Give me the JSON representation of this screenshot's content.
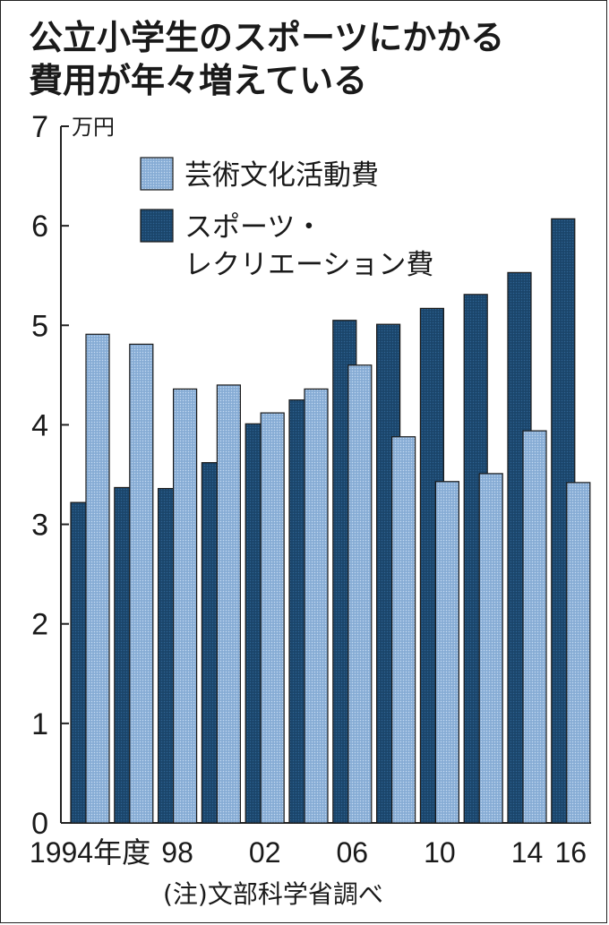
{
  "title_lines": [
    "公立小学生のスポーツにかかる",
    "費用が年々増えている"
  ],
  "note": "(注)文部科学省調べ",
  "colors": {
    "light_series": "#8fb3da",
    "dark_series": "#1d4a72",
    "axis": "#222222"
  },
  "chart_data": {
    "type": "bar",
    "title": "公立小学生のスポーツにかかる費用が年々増えている",
    "ylabel": "万円",
    "ylim": [
      0,
      7
    ],
    "yticks": [
      "0",
      "1",
      "2",
      "3",
      "4",
      "5",
      "6",
      "7"
    ],
    "grid": false,
    "legend_placement": "top-center",
    "categories": [
      "1994",
      "1996",
      "1998",
      "2000",
      "2002",
      "2004",
      "2006",
      "2008",
      "2010",
      "2012",
      "2014",
      "2016"
    ],
    "x_tick_labels": [
      {
        "category_index": 0,
        "text": "1994年度"
      },
      {
        "category_index": 2,
        "text": "98"
      },
      {
        "category_index": 4,
        "text": "02"
      },
      {
        "category_index": 6,
        "text": "06"
      },
      {
        "category_index": 8,
        "text": "10"
      },
      {
        "category_index": 10,
        "text": "14"
      },
      {
        "category_index": 11,
        "text": "16"
      }
    ],
    "series": [
      {
        "name": "スポーツ・レクリエーション費",
        "legend_lines": [
          "スポーツ・",
          "レクリエーション費"
        ],
        "color": "#1d4a72",
        "values": [
          3.22,
          3.37,
          3.36,
          3.62,
          4.01,
          4.25,
          5.05,
          5.01,
          5.17,
          5.31,
          5.53,
          6.07
        ]
      },
      {
        "name": "芸術文化活動費",
        "legend_lines": [
          "芸術文化活動費"
        ],
        "color": "#8fb3da",
        "values": [
          4.91,
          4.81,
          4.36,
          4.4,
          4.12,
          4.36,
          4.6,
          3.88,
          3.43,
          3.51,
          3.94,
          3.42
        ]
      }
    ]
  }
}
